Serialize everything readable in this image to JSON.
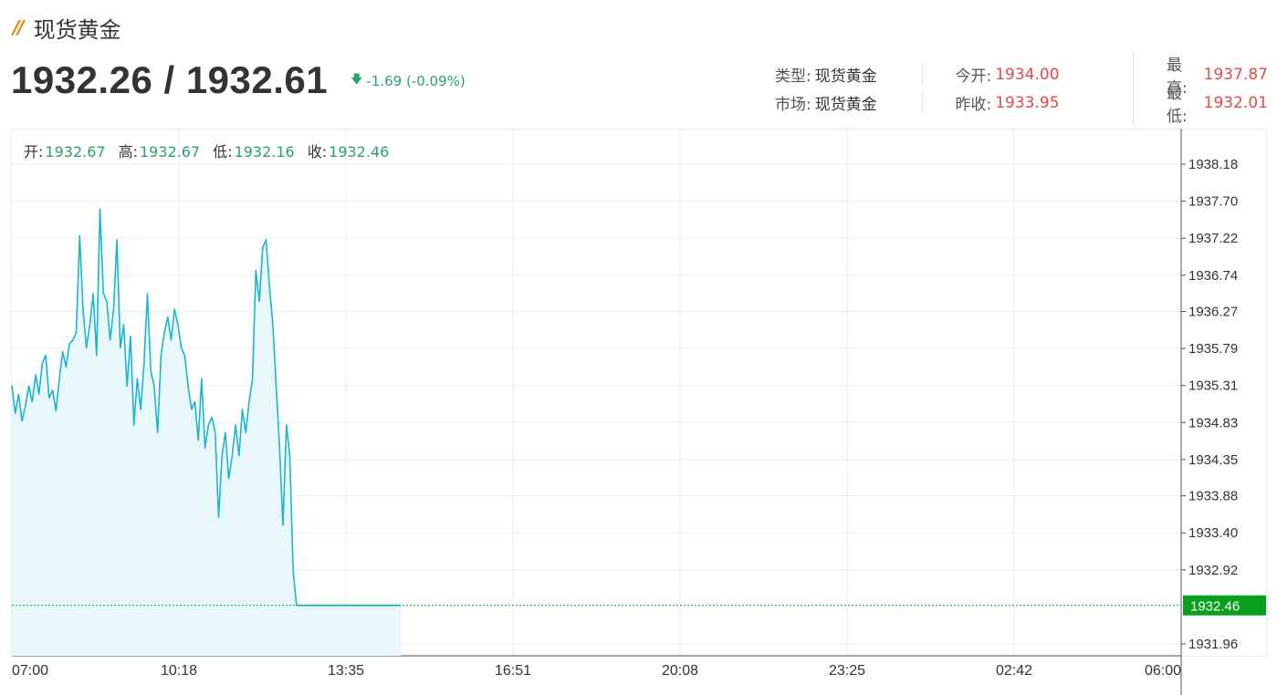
{
  "header": {
    "title": "现货黄金",
    "bid_ask": "1932.26 / 1932.61",
    "change_text": "-1.69 (-0.09%)"
  },
  "info": {
    "type_label": "类型:",
    "type_value": "现货黄金",
    "market_label": "市场:",
    "market_value": "现货黄金",
    "open_label": "今开:",
    "open_value": "1934.00",
    "prev_close_label": "昨收:",
    "prev_close_value": "1933.95",
    "high_label": "最高:",
    "high_value": "1937.87",
    "low_label": "最低:",
    "low_value": "1932.01"
  },
  "ohlc": {
    "open_label": "开:",
    "open_value": "1932.67",
    "high_label": "高:",
    "high_value": "1932.67",
    "low_label": "低:",
    "low_value": "1932.16",
    "close_label": "收:",
    "close_value": "1932.46"
  },
  "colors": {
    "line": "#1bb5d1",
    "fill": "#e8f7fa",
    "grid": "#e3eef2",
    "current": "#0aa01e",
    "up": "#e5484d",
    "down": "#2aa36b",
    "accent": "#f08300"
  },
  "chart_data": {
    "type": "area",
    "x_ticks": [
      "07:00",
      "10:18",
      "13:35",
      "16:51",
      "20:08",
      "23:25",
      "02:42",
      "06:00"
    ],
    "y_ticks": [
      1938.18,
      1937.7,
      1937.22,
      1936.74,
      1936.27,
      1935.79,
      1935.31,
      1934.83,
      1934.35,
      1933.88,
      1933.4,
      1932.92,
      1931.96
    ],
    "ylim": [
      1931.96,
      1938.18
    ],
    "current_value": 1932.46,
    "current_label": "1932.46",
    "session_minutes": 1380,
    "x_minutes": [
      0,
      4,
      8,
      12,
      16,
      20,
      24,
      28,
      32,
      36,
      40,
      44,
      48,
      52,
      56,
      60,
      64,
      68,
      72,
      76,
      80,
      84,
      88,
      92,
      96,
      100,
      104,
      108,
      112,
      116,
      120,
      124,
      128,
      132,
      136,
      140,
      144,
      148,
      152,
      156,
      160,
      164,
      168,
      172,
      176,
      180,
      184,
      188,
      192,
      196,
      200,
      204,
      208,
      212,
      216,
      220,
      224,
      228,
      232,
      236,
      240,
      244,
      248,
      252,
      256,
      260,
      264,
      268,
      272,
      276,
      280,
      284,
      288,
      292,
      296,
      300,
      304,
      308,
      312,
      316,
      320,
      324,
      328,
      332,
      336,
      340,
      344,
      348,
      352,
      356,
      360,
      364,
      368,
      372,
      376,
      380,
      384,
      388,
      392,
      396,
      400,
      404,
      408,
      412,
      416,
      420,
      424,
      428,
      432,
      436,
      440,
      444,
      448,
      452,
      456,
      459
    ],
    "values": [
      1935.31,
      1934.95,
      1935.2,
      1934.85,
      1935.05,
      1935.3,
      1935.1,
      1935.45,
      1935.2,
      1935.6,
      1935.7,
      1935.15,
      1935.25,
      1934.98,
      1935.4,
      1935.75,
      1935.55,
      1935.85,
      1935.9,
      1936.0,
      1937.25,
      1936.3,
      1935.8,
      1936.1,
      1936.5,
      1935.7,
      1937.6,
      1936.5,
      1936.4,
      1935.9,
      1936.3,
      1937.2,
      1935.8,
      1936.1,
      1935.3,
      1935.95,
      1934.8,
      1935.4,
      1935.0,
      1935.6,
      1936.5,
      1935.5,
      1935.3,
      1934.7,
      1935.7,
      1936.0,
      1936.2,
      1935.9,
      1936.3,
      1936.1,
      1935.8,
      1935.7,
      1935.3,
      1935.0,
      1935.1,
      1934.6,
      1935.4,
      1934.5,
      1934.8,
      1934.9,
      1934.7,
      1933.6,
      1934.4,
      1934.7,
      1934.1,
      1934.4,
      1934.8,
      1934.4,
      1935.0,
      1934.7,
      1935.1,
      1935.4,
      1936.8,
      1936.4,
      1937.1,
      1937.2,
      1936.6,
      1936.1,
      1935.3,
      1934.5,
      1933.5,
      1934.8,
      1934.4,
      1932.9,
      1932.46,
      1932.46,
      1932.46,
      1932.46,
      1932.46,
      1932.46,
      1932.46,
      1932.46,
      1932.46,
      1932.46,
      1932.46,
      1932.46,
      1932.46,
      1932.46,
      1932.46,
      1932.46,
      1932.46,
      1932.46,
      1932.46,
      1932.46,
      1932.46,
      1932.46,
      1932.46,
      1932.46,
      1932.46,
      1932.46,
      1932.46,
      1932.46,
      1932.46,
      1932.46,
      1932.46,
      1932.46
    ],
    "title": "",
    "xlabel": "",
    "ylabel": ""
  }
}
